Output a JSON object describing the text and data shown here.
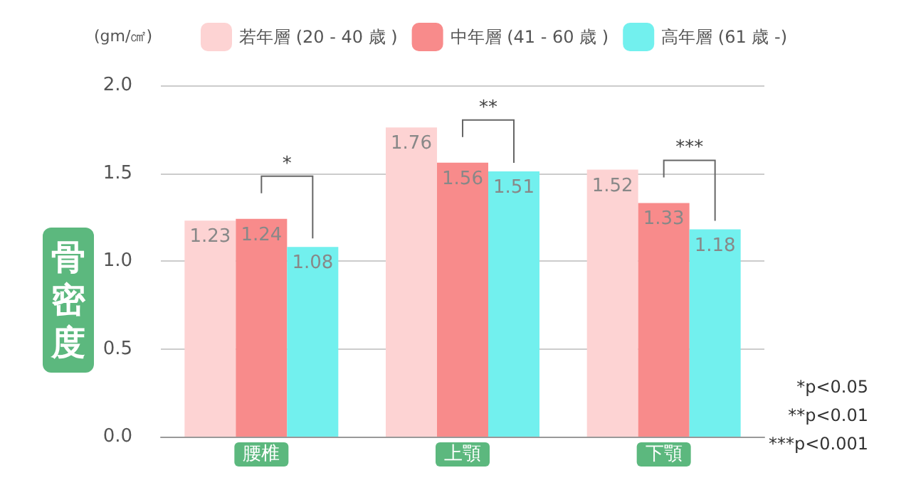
{
  "chart_data": {
    "type": "bar",
    "ylabel": "骨密度",
    "categories": [
      "腰椎",
      "上顎",
      "下顎"
    ],
    "series": [
      {
        "name": "若年層 (20 - 40 歳 )",
        "color": "#fdd3d3",
        "values": [
          1.23,
          1.76,
          1.52
        ]
      },
      {
        "name": "中年層 (41 - 60 歳 )",
        "color": "#f88b8b",
        "values": [
          1.24,
          1.56,
          1.33
        ]
      },
      {
        "name": "高年層 (61 歳 -)",
        "color": "#72f0ee",
        "values": [
          1.08,
          1.51,
          1.18
        ]
      }
    ],
    "ylim": [
      0,
      2
    ],
    "yticks": [
      {
        "value": 0,
        "label": "0.0"
      },
      0.5,
      {
        "value": 1,
        "label": "1.0"
      },
      1.5,
      {
        "value": 2,
        "label": "2.0"
      }
    ],
    "grid": "y",
    "legend": "top",
    "data_labels": true,
    "annotations": [
      "(gm/㎠)",
      "*",
      "**",
      "***",
      "*p<0.05",
      "**p<0.01",
      "***p<0.001"
    ]
  }
}
